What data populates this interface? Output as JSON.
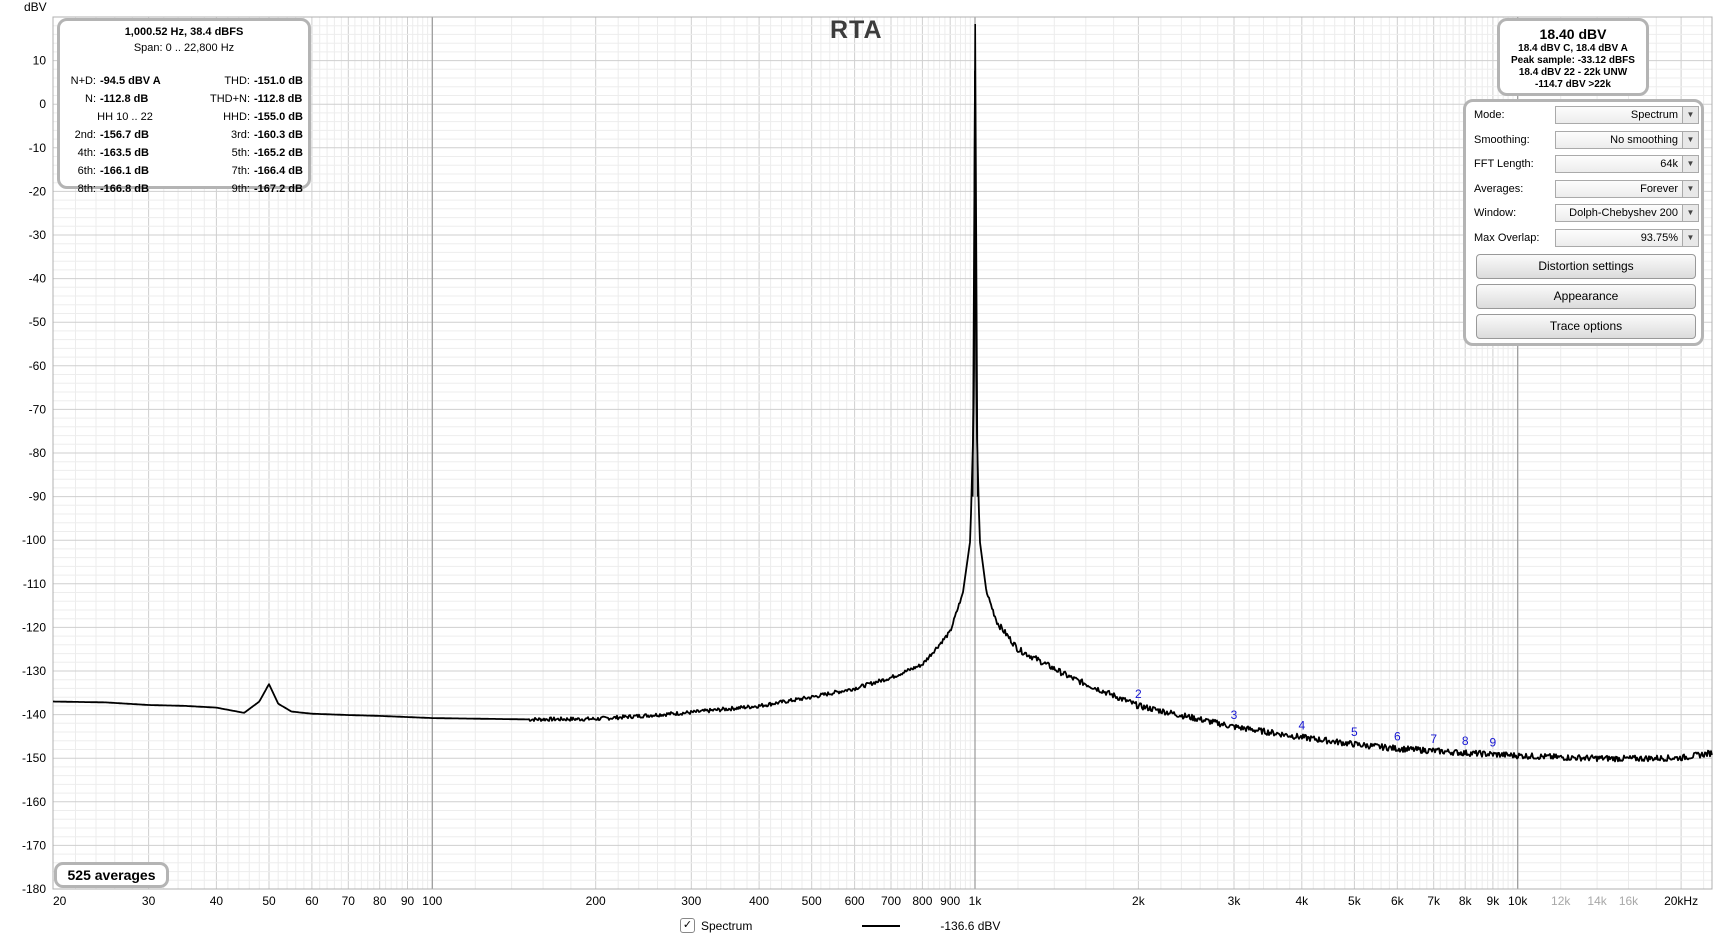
{
  "chart_data": {
    "type": "line",
    "title": "RTA",
    "ylabel": "dBV",
    "xlabel": "",
    "x_scale": "log",
    "xlim": [
      20,
      22800
    ],
    "ylim": [
      -180,
      20
    ],
    "y_ticks": [
      "10",
      "0",
      "-10",
      "-20",
      "-30",
      "-40",
      "-50",
      "-60",
      "-70",
      "-80",
      "-90",
      "-100",
      "-110",
      "-120",
      "-130",
      "-140",
      "-150",
      "-160",
      "-170",
      "-180"
    ],
    "x_ticks": [
      {
        "v": 20,
        "label": "20"
      },
      {
        "v": 30,
        "label": "30"
      },
      {
        "v": 40,
        "label": "40"
      },
      {
        "v": 50,
        "label": "50"
      },
      {
        "v": 60,
        "label": "60"
      },
      {
        "v": 70,
        "label": "70"
      },
      {
        "v": 80,
        "label": "80"
      },
      {
        "v": 90,
        "label": "90"
      },
      {
        "v": 100,
        "label": "100"
      },
      {
        "v": 200,
        "label": "200"
      },
      {
        "v": 300,
        "label": "300"
      },
      {
        "v": 400,
        "label": "400"
      },
      {
        "v": 500,
        "label": "500"
      },
      {
        "v": 600,
        "label": "600"
      },
      {
        "v": 700,
        "label": "700"
      },
      {
        "v": 800,
        "label": "800"
      },
      {
        "v": 900,
        "label": "900"
      },
      {
        "v": 1000,
        "label": "1k"
      },
      {
        "v": 2000,
        "label": "2k"
      },
      {
        "v": 3000,
        "label": "3k"
      },
      {
        "v": 4000,
        "label": "4k"
      },
      {
        "v": 5000,
        "label": "5k"
      },
      {
        "v": 6000,
        "label": "6k"
      },
      {
        "v": 7000,
        "label": "7k"
      },
      {
        "v": 8000,
        "label": "8k"
      },
      {
        "v": 9000,
        "label": "9k"
      },
      {
        "v": 10000,
        "label": "10k"
      },
      {
        "v": 12000,
        "label": "12k",
        "grey": true
      },
      {
        "v": 14000,
        "label": "14k",
        "grey": true
      },
      {
        "v": 16000,
        "label": "16k",
        "grey": true
      },
      {
        "v": 20000,
        "label": "20kHz"
      }
    ],
    "series": [
      {
        "name": "Spectrum",
        "color": "#000000",
        "points": [
          [
            20,
            -137.0
          ],
          [
            25,
            -137.2
          ],
          [
            30,
            -137.8
          ],
          [
            35,
            -138.0
          ],
          [
            40,
            -138.4
          ],
          [
            45,
            -139.6
          ],
          [
            48,
            -137.0
          ],
          [
            50,
            -133.0
          ],
          [
            52,
            -137.5
          ],
          [
            55,
            -139.3
          ],
          [
            60,
            -139.8
          ],
          [
            70,
            -140.1
          ],
          [
            80,
            -140.3
          ],
          [
            100,
            -140.8
          ],
          [
            150,
            -141.1
          ],
          [
            200,
            -141.0
          ],
          [
            300,
            -139.5
          ],
          [
            400,
            -138.0
          ],
          [
            500,
            -136.0
          ],
          [
            600,
            -134.0
          ],
          [
            700,
            -131.5
          ],
          [
            800,
            -128.5
          ],
          [
            900,
            -121.0
          ],
          [
            950,
            -112.0
          ],
          [
            980,
            -100.0
          ],
          [
            995,
            -70.0
          ],
          [
            1000.5,
            18.4
          ],
          [
            1005,
            -70.0
          ],
          [
            1020,
            -100.0
          ],
          [
            1050,
            -112.0
          ],
          [
            1100,
            -119.0
          ],
          [
            1200,
            -125.0
          ],
          [
            1500,
            -131.5
          ],
          [
            2000,
            -138.0
          ],
          [
            3000,
            -142.8
          ],
          [
            4000,
            -145.2
          ],
          [
            5000,
            -146.8
          ],
          [
            6000,
            -147.8
          ],
          [
            7000,
            -148.3
          ],
          [
            8000,
            -148.8
          ],
          [
            9000,
            -149.1
          ],
          [
            10000,
            -149.4
          ],
          [
            12000,
            -149.8
          ],
          [
            14000,
            -150.0
          ],
          [
            16000,
            -150.1
          ],
          [
            18000,
            -150.0
          ],
          [
            20000,
            -149.9
          ],
          [
            22800,
            -148.8
          ]
        ]
      }
    ],
    "harmonic_markers": [
      {
        "label": "2",
        "f": 2000,
        "db": -138.0
      },
      {
        "label": "3",
        "f": 3000,
        "db": -142.8
      },
      {
        "label": "4",
        "f": 4000,
        "db": -145.2
      },
      {
        "label": "5",
        "f": 5000,
        "db": -146.8
      },
      {
        "label": "6",
        "f": 6000,
        "db": -147.8
      },
      {
        "label": "7",
        "f": 7000,
        "db": -148.3
      },
      {
        "label": "8",
        "f": 8000,
        "db": -148.8
      },
      {
        "label": "9",
        "f": 9000,
        "db": -149.1
      }
    ],
    "marker_color": "#1414d2"
  },
  "stats": {
    "header1": "1,000.52 Hz, 38.4 dBFS",
    "header2": "Span: 0 .. 22,800 Hz",
    "rows": [
      {
        "l1": "N+D:",
        "v1": "-94.5 dBV A",
        "l2": "THD:",
        "v2": "-151.0 dB"
      },
      {
        "l1": "N:",
        "v1": "-112.8 dB",
        "l2": "THD+N:",
        "v2": "-112.8 dB"
      },
      {
        "l1": "HH 10 .. 22",
        "v1": "",
        "l2": "HHD:",
        "v2": "-155.0 dB"
      },
      {
        "l1": "2nd:",
        "v1": "-156.7 dB",
        "l2": "3rd:",
        "v2": "-160.3 dB"
      },
      {
        "l1": "4th:",
        "v1": "-163.5 dB",
        "l2": "5th:",
        "v2": "-165.2 dB"
      },
      {
        "l1": "6th:",
        "v1": "-166.1 dB",
        "l2": "7th:",
        "v2": "-166.4 dB"
      },
      {
        "l1": "8th:",
        "v1": "-166.8 dB",
        "l2": "9th:",
        "v2": "-167.2 dB"
      }
    ]
  },
  "level": {
    "main": "18.40 dBV",
    "l1": "18.4 dBV C, 18.4 dBV A",
    "l2": "Peak sample: -33.12 dBFS",
    "l3": "18.4 dBV 22 - 22k UNW",
    "l4": "-114.7 dBV >22k"
  },
  "controls": {
    "rows": [
      {
        "label": "Mode:",
        "value": "Spectrum"
      },
      {
        "label": "Smoothing:",
        "value": "No  smoothing"
      },
      {
        "label": "FFT Length:",
        "value": "64k"
      },
      {
        "label": "Averages:",
        "value": "Forever"
      },
      {
        "label": "Window:",
        "value": "Dolph-Chebyshev 200"
      },
      {
        "label": "Max Overlap:",
        "value": "93.75%"
      }
    ],
    "buttons": [
      "Distortion settings",
      "Appearance",
      "Trace options"
    ]
  },
  "averages": "525 averages",
  "legend": {
    "checked": "✓",
    "name": "Spectrum",
    "value": "-136.6 dBV"
  }
}
